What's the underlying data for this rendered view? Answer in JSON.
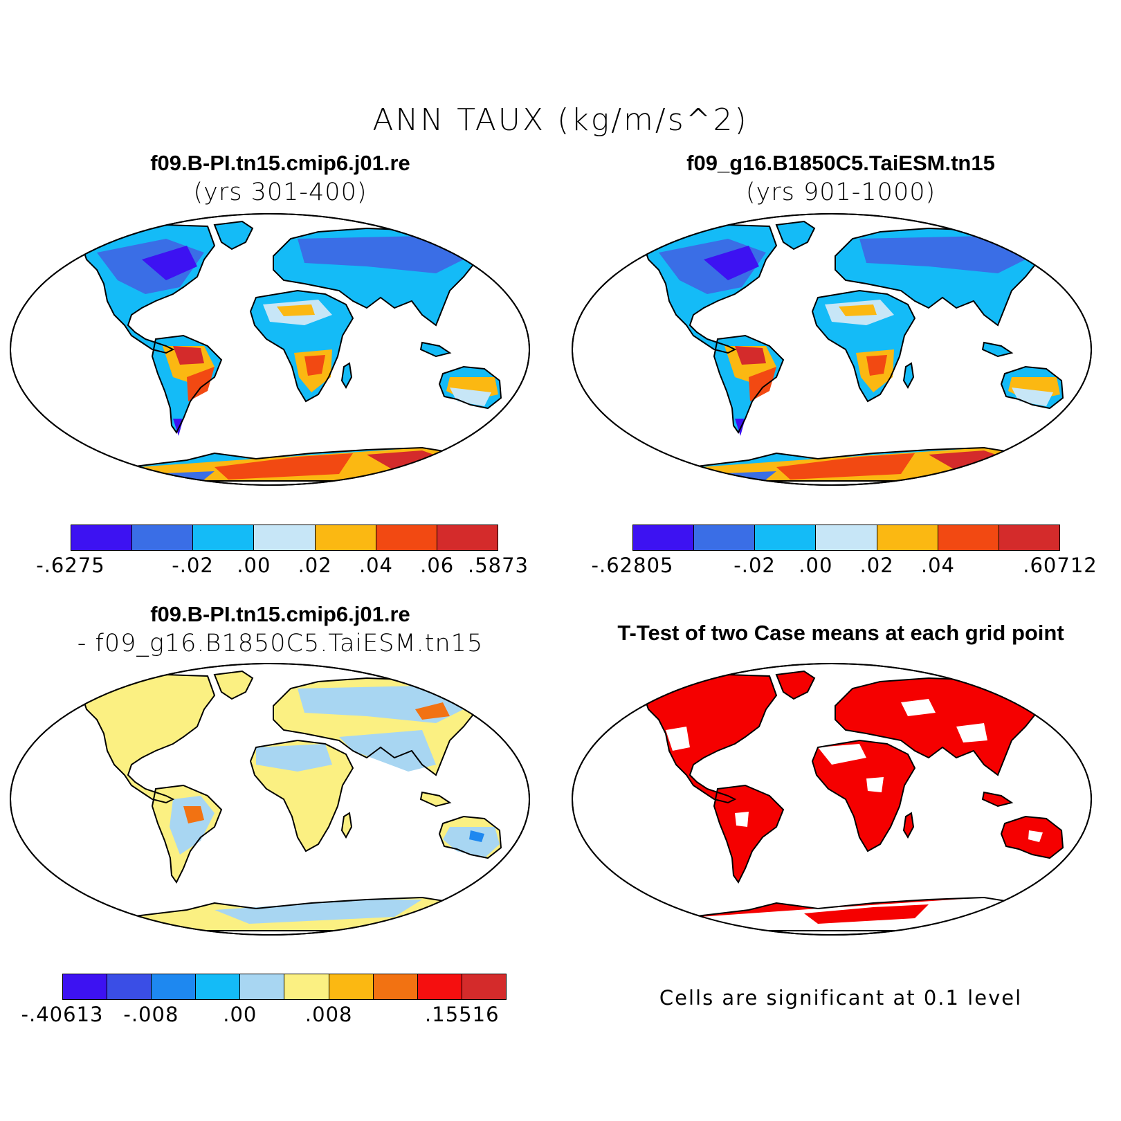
{
  "title": "ANN TAUX (kg/m/s^2)",
  "panels": {
    "p1": {
      "title": "f09.B-PI.tn15.cmip6.j01.re",
      "subtitle": "(yrs 301-400)"
    },
    "p2": {
      "title": "f09_g16.B1850C5.TaiESM.tn15",
      "subtitle": "(yrs 901-1000)"
    },
    "p3": {
      "title": "f09.B-PI.tn15.cmip6.j01.re",
      "subtitle": "- f09_g16.B1850C5.TaiESM.tn15"
    },
    "p4": {
      "title": "T-Test of two Case means at each grid point",
      "note": "Cells are significant at 0.1 level"
    }
  },
  "colorbars": {
    "cb1": {
      "colors": [
        "#3d12f2",
        "#3a6ee6",
        "#14bbf7",
        "#c7e6f7",
        "#fbb812",
        "#f24912",
        "#d42b2b"
      ],
      "labels": [
        "-.6275",
        "",
        "-.02",
        ".00",
        ".02",
        ".04",
        ".06",
        ".5873"
      ]
    },
    "cb2": {
      "colors": [
        "#3d12f2",
        "#3a6ee6",
        "#14bbf7",
        "#c7e6f7",
        "#fbb812",
        "#f24912",
        "#d42b2b"
      ],
      "labels": [
        "-.62805",
        "",
        "-.02",
        ".00",
        ".02",
        ".04",
        "",
        ".60712"
      ]
    },
    "cb3": {
      "colors": [
        "#3d12f2",
        "#3a4ee6",
        "#1e88f0",
        "#14bbf7",
        "#a8d6f2",
        "#fbf082",
        "#fbb812",
        "#f27212",
        "#f50f0f",
        "#d42b2b"
      ],
      "labels": [
        "-.40613",
        "",
        "-.008",
        "",
        ".00",
        "",
        ".008",
        "",
        "",
        ".15516"
      ]
    }
  },
  "map_colors": {
    "land_outline": "#000000",
    "significance": "#f50000"
  }
}
